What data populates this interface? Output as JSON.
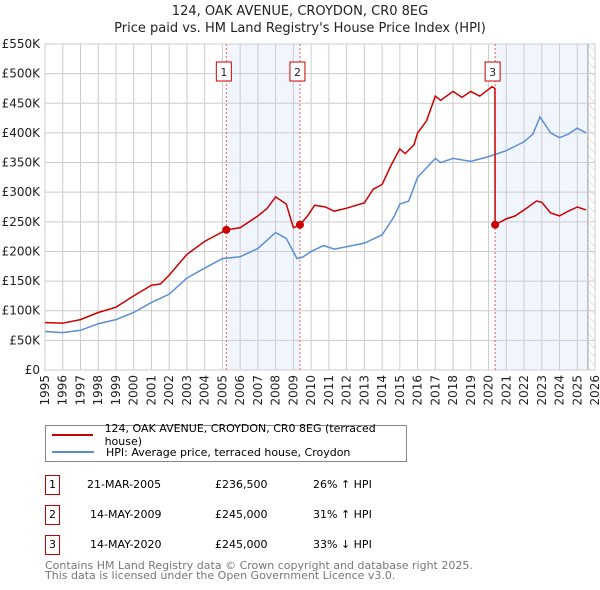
{
  "title_line1": "124, OAK AVENUE, CROYDON, CR0 8EG",
  "title_line2": "Price paid vs. HM Land Registry's House Price Index (HPI)",
  "chart_data": {
    "type": "line",
    "title": "124, OAK AVENUE, CROYDON, CR0 8EG — Price paid vs. HM Land Registry's House Price Index (HPI)",
    "xlim": [
      1995,
      2026
    ],
    "ylim": [
      0,
      550000
    ],
    "x_ticks": [
      "1995",
      "1996",
      "1997",
      "1998",
      "1999",
      "2000",
      "2001",
      "2002",
      "2003",
      "2004",
      "2005",
      "2006",
      "2007",
      "2008",
      "2009",
      "2010",
      "2011",
      "2012",
      "2013",
      "2014",
      "2015",
      "2016",
      "2017",
      "2018",
      "2019",
      "2020",
      "2021",
      "2022",
      "2023",
      "2024",
      "2025",
      "2026"
    ],
    "y_ticks": [
      {
        "v": 0,
        "l": "£0"
      },
      {
        "v": 50000,
        "l": "£50K"
      },
      {
        "v": 100000,
        "l": "£100K"
      },
      {
        "v": 150000,
        "l": "£150K"
      },
      {
        "v": 200000,
        "l": "£200K"
      },
      {
        "v": 250000,
        "l": "£250K"
      },
      {
        "v": 300000,
        "l": "£300K"
      },
      {
        "v": 350000,
        "l": "£350K"
      },
      {
        "v": 400000,
        "l": "£400K"
      },
      {
        "v": 450000,
        "l": "£450K"
      },
      {
        "v": 500000,
        "l": "£500K"
      },
      {
        "v": 550000,
        "l": "£550K"
      }
    ],
    "grid": true,
    "legend_position": "below",
    "series": [
      {
        "name": "124, OAK AVENUE, CROYDON, CR0 8EG (terraced house)",
        "color": "#cc0000",
        "x": [
          1995,
          1996,
          1997,
          1998,
          1999,
          2000,
          2001,
          2001.5,
          2002,
          2003,
          2004,
          2005.22,
          2006,
          2007,
          2007.5,
          2008,
          2008.6,
          2009,
          2009.37,
          2009.8,
          2010.2,
          2010.8,
          2011.3,
          2012,
          2013,
          2013.5,
          2014,
          2014.5,
          2015,
          2015.3,
          2015.8,
          2016,
          2016.5,
          2017,
          2017.3,
          2018,
          2018.5,
          2019,
          2019.5,
          2020.2,
          2020.36,
          2020.37,
          2021,
          2021.5,
          2022,
          2022.7,
          2023,
          2023.5,
          2024,
          2024.5,
          2025,
          2025.5
        ],
        "y": [
          80000,
          79000,
          85000,
          97000,
          106000,
          125000,
          143000,
          145000,
          160000,
          195000,
          217000,
          236500,
          240000,
          260000,
          272000,
          292000,
          280000,
          240000,
          245000,
          260000,
          278000,
          275000,
          268000,
          273000,
          282000,
          305000,
          313000,
          345000,
          373000,
          365000,
          380000,
          400000,
          420000,
          462000,
          455000,
          470000,
          460000,
          470000,
          462000,
          478000,
          475000,
          245000,
          255000,
          260000,
          270000,
          285000,
          283000,
          265000,
          260000,
          268000,
          275000,
          270000
        ]
      },
      {
        "name": "HPI: Average price, terraced house, Croydon",
        "color": "#5b8fd4",
        "x": [
          1995,
          1996,
          1997,
          1998,
          1999,
          2000,
          2001,
          2002,
          2003,
          2004,
          2005,
          2006,
          2007,
          2008,
          2008.6,
          2009.2,
          2009.5,
          2010,
          2010.7,
          2011.3,
          2012,
          2013,
          2014,
          2014.7,
          2015,
          2015.5,
          2016,
          2017,
          2017.3,
          2018,
          2019,
          2020,
          2021,
          2022,
          2022.5,
          2022.9,
          2023.5,
          2024,
          2024.5,
          2025,
          2025.5
        ],
        "y": [
          65000,
          63000,
          67000,
          78000,
          85000,
          97000,
          114000,
          128000,
          155000,
          172000,
          188000,
          191000,
          205000,
          232000,
          222000,
          188000,
          190000,
          200000,
          210000,
          204000,
          208000,
          214000,
          228000,
          260000,
          280000,
          285000,
          325000,
          357000,
          350000,
          357000,
          352000,
          360000,
          370000,
          385000,
          398000,
          427000,
          400000,
          392000,
          398000,
          408000,
          400000
        ]
      }
    ],
    "annotations": [
      {
        "label": "1",
        "x": 2005.22,
        "y": 236500
      },
      {
        "label": "2",
        "x": 2009.37,
        "y": 245000
      },
      {
        "label": "3",
        "x": 2020.37,
        "y": 245000
      }
    ],
    "shaded_ranges": [
      [
        2005.22,
        2009.37
      ],
      [
        2020.37,
        2025.6
      ]
    ],
    "hatched_after": 2025.6
  },
  "legend": {
    "property": "124, OAK AVENUE, CROYDON, CR0 8EG (terraced house)",
    "hpi": "HPI: Average price, terraced house, Croydon"
  },
  "sales": [
    {
      "num": "1",
      "date": "21-MAR-2005",
      "price": "£236,500",
      "hpi": "26% ↑ HPI"
    },
    {
      "num": "2",
      "date": "14-MAY-2009",
      "price": "£245,000",
      "hpi": "31% ↑ HPI"
    },
    {
      "num": "3",
      "date": "14-MAY-2020",
      "price": "£245,000",
      "hpi": "33% ↓ HPI"
    }
  ],
  "footer": {
    "line1": "Contains HM Land Registry data © Crown copyright and database right 2025.",
    "line2": "This data is licensed under the Open Government Licence v3.0."
  }
}
